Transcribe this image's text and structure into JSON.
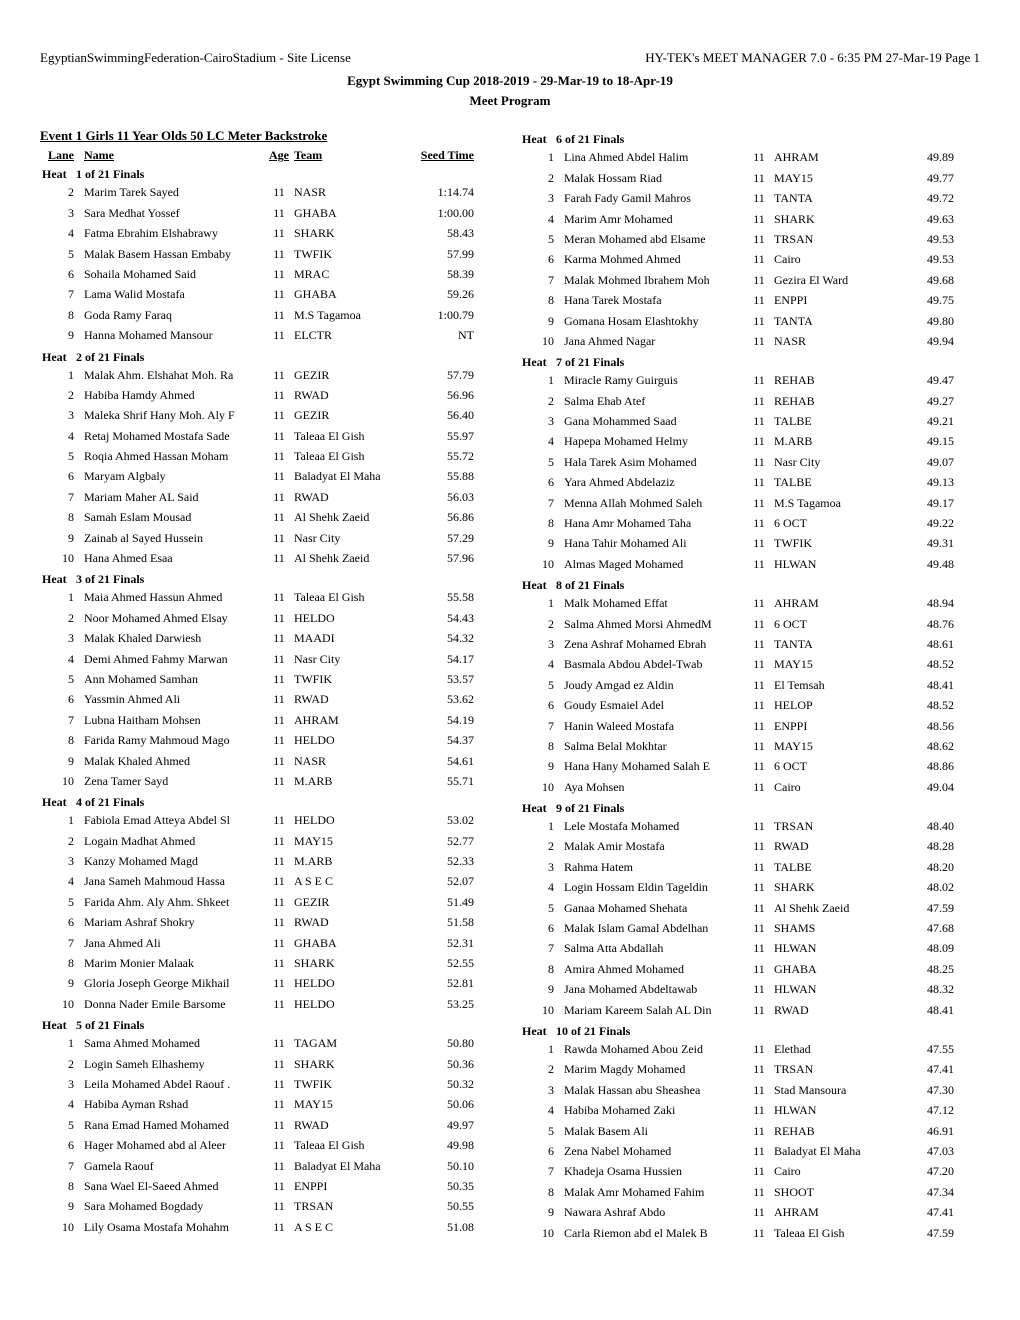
{
  "header": {
    "left": "EgyptianSwimmingFederation-CairoStadium - Site License",
    "right": "HY-TEK's MEET MANAGER 7.0 - 6:35 PM  27-Mar-19  Page 1",
    "meet_title": "Egypt Swimming Cup 2018-2019 - 29-Mar-19 to 18-Apr-19",
    "subtitle": "Meet Program"
  },
  "event_title": "Event  1   Girls 11 Year Olds 50 LC Meter Backstroke",
  "col_labels": {
    "lane": "Lane",
    "name": "Name",
    "age": "Age",
    "team": "Team",
    "seed_time": "Seed Time"
  },
  "heat_label": "Heat",
  "left_heats": [
    {
      "title": "1 of 21  Finals",
      "rows": [
        {
          "lane": "2",
          "name": "Marim Tarek Sayed",
          "age": "11",
          "team": "NASR",
          "time": "1:14.74"
        },
        {
          "lane": "3",
          "name": "Sara Medhat Yossef",
          "age": "11",
          "team": "GHABA",
          "time": "1:00.00"
        },
        {
          "lane": "4",
          "name": "Fatma Ebrahim Elshabrawy",
          "age": "11",
          "team": "SHARK",
          "time": "58.43"
        },
        {
          "lane": "5",
          "name": "Malak Basem Hassan Embaby",
          "age": "11",
          "team": "TWFIK",
          "time": "57.99"
        },
        {
          "lane": "6",
          "name": "Sohaila Mohamed Said",
          "age": "11",
          "team": "MRAC",
          "time": "58.39"
        },
        {
          "lane": "7",
          "name": "Lama Walid Mostafa",
          "age": "11",
          "team": "GHABA",
          "time": "59.26"
        },
        {
          "lane": "8",
          "name": "Goda Ramy Faraq",
          "age": "11",
          "team": "M.S Tagamoa",
          "time": "1:00.79"
        },
        {
          "lane": "9",
          "name": "Hanna Mohamed Mansour",
          "age": "11",
          "team": "ELCTR",
          "time": "NT"
        }
      ]
    },
    {
      "title": "2 of 21  Finals",
      "rows": [
        {
          "lane": "1",
          "name": "Malak Ahm. Elshahat Moh. Ra",
          "age": "11",
          "team": "GEZIR",
          "time": "57.79"
        },
        {
          "lane": "2",
          "name": "Habiba Hamdy Ahmed",
          "age": "11",
          "team": "RWAD",
          "time": "56.96"
        },
        {
          "lane": "3",
          "name": "Maleka Shrif Hany Moh. Aly F",
          "age": "11",
          "team": "GEZIR",
          "time": "56.40"
        },
        {
          "lane": "4",
          "name": "Retaj Mohamed Mostafa Sade",
          "age": "11",
          "team": "Taleaa El Gish",
          "time": "55.97"
        },
        {
          "lane": "5",
          "name": "Roqia Ahmed Hassan Moham",
          "age": "11",
          "team": "Taleaa El Gish",
          "time": "55.72"
        },
        {
          "lane": "6",
          "name": "Maryam Algbaly",
          "age": "11",
          "team": "Baladyat El Maha",
          "time": "55.88"
        },
        {
          "lane": "7",
          "name": "Mariam Maher AL Said",
          "age": "11",
          "team": "RWAD",
          "time": "56.03"
        },
        {
          "lane": "8",
          "name": "Samah Eslam Mousad",
          "age": "11",
          "team": "Al Shehk Zaeid",
          "time": "56.86"
        },
        {
          "lane": "9",
          "name": "Zainab al Sayed Hussein",
          "age": "11",
          "team": "Nasr City",
          "time": "57.29"
        },
        {
          "lane": "10",
          "name": "Hana Ahmed Esaa",
          "age": "11",
          "team": "Al Shehk Zaeid",
          "time": "57.96"
        }
      ]
    },
    {
      "title": "3 of 21  Finals",
      "rows": [
        {
          "lane": "1",
          "name": "Maia Ahmed Hassun Ahmed",
          "age": "11",
          "team": "Taleaa El Gish",
          "time": "55.58"
        },
        {
          "lane": "2",
          "name": "Noor Mohamed Ahmed Elsay",
          "age": "11",
          "team": "HELDO",
          "time": "54.43"
        },
        {
          "lane": "3",
          "name": "Malak Khaled Darwiesh",
          "age": "11",
          "team": "MAADI",
          "time": "54.32"
        },
        {
          "lane": "4",
          "name": "Demi Ahmed Fahmy Marwan",
          "age": "11",
          "team": "Nasr City",
          "time": "54.17"
        },
        {
          "lane": "5",
          "name": "Ann Mohamed Samhan",
          "age": "11",
          "team": "TWFIK",
          "time": "53.57"
        },
        {
          "lane": "6",
          "name": "Yassmin Ahmed Ali",
          "age": "11",
          "team": "RWAD",
          "time": "53.62"
        },
        {
          "lane": "7",
          "name": "Lubna Haitham Mohsen",
          "age": "11",
          "team": "AHRAM",
          "time": "54.19"
        },
        {
          "lane": "8",
          "name": "Farida Ramy Mahmoud Mago",
          "age": "11",
          "team": "HELDO",
          "time": "54.37"
        },
        {
          "lane": "9",
          "name": "Malak Khaled Ahmed",
          "age": "11",
          "team": "NASR",
          "time": "54.61"
        },
        {
          "lane": "10",
          "name": "Zena Tamer Sayd",
          "age": "11",
          "team": "M.ARB",
          "time": "55.71"
        }
      ]
    },
    {
      "title": "4 of 21  Finals",
      "rows": [
        {
          "lane": "1",
          "name": "Fabiola Emad Atteya Abdel Sl",
          "age": "11",
          "team": "HELDO",
          "time": "53.02"
        },
        {
          "lane": "2",
          "name": "Logain Madhat Ahmed",
          "age": "11",
          "team": "MAY15",
          "time": "52.77"
        },
        {
          "lane": "3",
          "name": "Kanzy Mohamed Magd",
          "age": "11",
          "team": "M.ARB",
          "time": "52.33"
        },
        {
          "lane": "4",
          "name": "Jana Sameh Mahmoud Hassa",
          "age": "11",
          "team": "A S E C",
          "time": "52.07"
        },
        {
          "lane": "5",
          "name": "Farida Ahm. Aly Ahm. Shkeet",
          "age": "11",
          "team": "GEZIR",
          "time": "51.49"
        },
        {
          "lane": "6",
          "name": "Mariam Ashraf Shokry",
          "age": "11",
          "team": "RWAD",
          "time": "51.58"
        },
        {
          "lane": "7",
          "name": "Jana Ahmed Ali",
          "age": "11",
          "team": "GHABA",
          "time": "52.31"
        },
        {
          "lane": "8",
          "name": "Marim Monier Malaak",
          "age": "11",
          "team": "SHARK",
          "time": "52.55"
        },
        {
          "lane": "9",
          "name": "Gloria Joseph George Mikhail",
          "age": "11",
          "team": "HELDO",
          "time": "52.81"
        },
        {
          "lane": "10",
          "name": "Donna Nader Emile Barsome",
          "age": "11",
          "team": "HELDO",
          "time": "53.25"
        }
      ]
    },
    {
      "title": "5 of 21  Finals",
      "rows": [
        {
          "lane": "1",
          "name": "Sama Ahmed Mohamed",
          "age": "11",
          "team": "TAGAM",
          "time": "50.80"
        },
        {
          "lane": "2",
          "name": "Login Sameh Elhashemy",
          "age": "11",
          "team": "SHARK",
          "time": "50.36"
        },
        {
          "lane": "3",
          "name": "Leila Mohamed Abdel Raouf .",
          "age": "11",
          "team": "TWFIK",
          "time": "50.32"
        },
        {
          "lane": "4",
          "name": "Habiba Ayman Rshad",
          "age": "11",
          "team": "MAY15",
          "time": "50.06"
        },
        {
          "lane": "5",
          "name": "Rana Emad Hamed Mohamed",
          "age": "11",
          "team": "RWAD",
          "time": "49.97"
        },
        {
          "lane": "6",
          "name": "Hager Mohamed abd al Aleer",
          "age": "11",
          "team": "Taleaa El Gish",
          "time": "49.98"
        },
        {
          "lane": "7",
          "name": "Gamela Raouf",
          "age": "11",
          "team": "Baladyat El Maha",
          "time": "50.10"
        },
        {
          "lane": "8",
          "name": "Sana Wael El-Saeed Ahmed",
          "age": "11",
          "team": "ENPPI",
          "time": "50.35"
        },
        {
          "lane": "9",
          "name": "Sara Mohamed Bogdady",
          "age": "11",
          "team": "TRSAN",
          "time": "50.55"
        },
        {
          "lane": "10",
          "name": "Lily Osama Mostafa Mohahm",
          "age": "11",
          "team": "A S E C",
          "time": "51.08"
        }
      ]
    }
  ],
  "right_heats": [
    {
      "title": "6 of 21  Finals",
      "rows": [
        {
          "lane": "1",
          "name": "Lina Ahmed Abdel Halim",
          "age": "11",
          "team": "AHRAM",
          "time": "49.89"
        },
        {
          "lane": "2",
          "name": "Malak Hossam Riad",
          "age": "11",
          "team": "MAY15",
          "time": "49.77"
        },
        {
          "lane": "3",
          "name": "Farah Fady Gamil Mahros",
          "age": "11",
          "team": "TANTA",
          "time": "49.72"
        },
        {
          "lane": "4",
          "name": "Marim Amr Mohamed",
          "age": "11",
          "team": "SHARK",
          "time": "49.63"
        },
        {
          "lane": "5",
          "name": "Meran Mohamed abd Elsame",
          "age": "11",
          "team": "TRSAN",
          "time": "49.53"
        },
        {
          "lane": "6",
          "name": "Karma Mohmed Ahmed",
          "age": "11",
          "team": "Cairo",
          "time": "49.53"
        },
        {
          "lane": "7",
          "name": "Malak Mohmed Ibrahem Moh",
          "age": "11",
          "team": "Gezira El Ward",
          "time": "49.68"
        },
        {
          "lane": "8",
          "name": "Hana Tarek Mostafa",
          "age": "11",
          "team": "ENPPI",
          "time": "49.75"
        },
        {
          "lane": "9",
          "name": "Gomana Hosam Elashtokhy",
          "age": "11",
          "team": "TANTA",
          "time": "49.80"
        },
        {
          "lane": "10",
          "name": "Jana Ahmed Nagar",
          "age": "11",
          "team": "NASR",
          "time": "49.94"
        }
      ]
    },
    {
      "title": "7 of 21  Finals",
      "rows": [
        {
          "lane": "1",
          "name": "Miracle Ramy Guirguis",
          "age": "11",
          "team": "REHAB",
          "time": "49.47"
        },
        {
          "lane": "2",
          "name": "Salma Ehab Atef",
          "age": "11",
          "team": "REHAB",
          "time": "49.27"
        },
        {
          "lane": "3",
          "name": "Gana Mohammed Saad",
          "age": "11",
          "team": "TALBE",
          "time": "49.21"
        },
        {
          "lane": "4",
          "name": "Hapepa Mohamed Helmy",
          "age": "11",
          "team": "M.ARB",
          "time": "49.15"
        },
        {
          "lane": "5",
          "name": "Hala Tarek Asim Mohamed",
          "age": "11",
          "team": "Nasr City",
          "time": "49.07"
        },
        {
          "lane": "6",
          "name": "Yara Ahmed Abdelaziz",
          "age": "11",
          "team": "TALBE",
          "time": "49.13"
        },
        {
          "lane": "7",
          "name": "Menna Allah Mohmed Saleh",
          "age": "11",
          "team": "M.S Tagamoa",
          "time": "49.17"
        },
        {
          "lane": "8",
          "name": "Hana Amr Mohamed Taha",
          "age": "11",
          "team": "6 OCT",
          "time": "49.22"
        },
        {
          "lane": "9",
          "name": "Hana Tahir Mohamed Ali",
          "age": "11",
          "team": "TWFIK",
          "time": "49.31"
        },
        {
          "lane": "10",
          "name": "Almas Maged Mohamed",
          "age": "11",
          "team": "HLWAN",
          "time": "49.48"
        }
      ]
    },
    {
      "title": "8 of 21  Finals",
      "rows": [
        {
          "lane": "1",
          "name": "Malk Mohamed Effat",
          "age": "11",
          "team": "AHRAM",
          "time": "48.94"
        },
        {
          "lane": "2",
          "name": "Salma Ahmed Morsi AhmedM",
          "age": "11",
          "team": "6 OCT",
          "time": "48.76"
        },
        {
          "lane": "3",
          "name": "Zena Ashraf Mohamed Ebrah",
          "age": "11",
          "team": "TANTA",
          "time": "48.61"
        },
        {
          "lane": "4",
          "name": "Basmala Abdou Abdel-Twab",
          "age": "11",
          "team": "MAY15",
          "time": "48.52"
        },
        {
          "lane": "5",
          "name": "Joudy Amgad ez Aldin",
          "age": "11",
          "team": "El Temsah",
          "time": "48.41"
        },
        {
          "lane": "6",
          "name": "Goudy Esmaiel Adel",
          "age": "11",
          "team": "HELOP",
          "time": "48.52"
        },
        {
          "lane": "7",
          "name": "Hanin Waleed Mostafa",
          "age": "11",
          "team": "ENPPI",
          "time": "48.56"
        },
        {
          "lane": "8",
          "name": "Salma Belal Mokhtar",
          "age": "11",
          "team": "MAY15",
          "time": "48.62"
        },
        {
          "lane": "9",
          "name": "Hana Hany Mohamed Salah E",
          "age": "11",
          "team": "6 OCT",
          "time": "48.86"
        },
        {
          "lane": "10",
          "name": "Aya Mohsen",
          "age": "11",
          "team": "Cairo",
          "time": "49.04"
        }
      ]
    },
    {
      "title": "9 of 21  Finals",
      "rows": [
        {
          "lane": "1",
          "name": "Lele Mostafa Mohamed",
          "age": "11",
          "team": "TRSAN",
          "time": "48.40"
        },
        {
          "lane": "2",
          "name": "Malak Amir Mostafa",
          "age": "11",
          "team": "RWAD",
          "time": "48.28"
        },
        {
          "lane": "3",
          "name": "Rahma Hatem",
          "age": "11",
          "team": "TALBE",
          "time": "48.20"
        },
        {
          "lane": "4",
          "name": "Login Hossam Eldin Tageldin",
          "age": "11",
          "team": "SHARK",
          "time": "48.02"
        },
        {
          "lane": "5",
          "name": "Ganaa Mohamed Shehata",
          "age": "11",
          "team": "Al Shehk Zaeid",
          "time": "47.59"
        },
        {
          "lane": "6",
          "name": "Malak Islam Gamal Abdelhan",
          "age": "11",
          "team": "SHAMS",
          "time": "47.68"
        },
        {
          "lane": "7",
          "name": "Salma Atta Abdallah",
          "age": "11",
          "team": "HLWAN",
          "time": "48.09"
        },
        {
          "lane": "8",
          "name": "Amira Ahmed Mohamed",
          "age": "11",
          "team": "GHABA",
          "time": "48.25"
        },
        {
          "lane": "9",
          "name": "Jana Mohamed Abdeltawab",
          "age": "11",
          "team": "HLWAN",
          "time": "48.32"
        },
        {
          "lane": "10",
          "name": "Mariam Kareem Salah AL Din",
          "age": "11",
          "team": "RWAD",
          "time": "48.41"
        }
      ]
    },
    {
      "title": "10 of 21  Finals",
      "rows": [
        {
          "lane": "1",
          "name": "Rawda Mohamed Abou Zeid",
          "age": "11",
          "team": "Elethad",
          "time": "47.55"
        },
        {
          "lane": "2",
          "name": "Marim Magdy Mohamed",
          "age": "11",
          "team": "TRSAN",
          "time": "47.41"
        },
        {
          "lane": "3",
          "name": "Malak Hassan abu Sheashea",
          "age": "11",
          "team": "Stad Mansoura",
          "time": "47.30"
        },
        {
          "lane": "4",
          "name": "Habiba Mohamed Zaki",
          "age": "11",
          "team": "HLWAN",
          "time": "47.12"
        },
        {
          "lane": "5",
          "name": "Malak Basem Ali",
          "age": "11",
          "team": "REHAB",
          "time": "46.91"
        },
        {
          "lane": "6",
          "name": "Zena Nabel Mohamed",
          "age": "11",
          "team": "Baladyat El Maha",
          "time": "47.03"
        },
        {
          "lane": "7",
          "name": "Khadeja Osama Hussien",
          "age": "11",
          "team": "Cairo",
          "time": "47.20"
        },
        {
          "lane": "8",
          "name": "Malak Amr Mohamed Fahim",
          "age": "11",
          "team": "SHOOT",
          "time": "47.34"
        },
        {
          "lane": "9",
          "name": "Nawara Ashraf Abdo",
          "age": "11",
          "team": "AHRAM",
          "time": "47.41"
        },
        {
          "lane": "10",
          "name": "Carla Riemon abd el Malek B",
          "age": "11",
          "team": "Taleaa El Gish",
          "time": "47.59"
        }
      ]
    }
  ]
}
